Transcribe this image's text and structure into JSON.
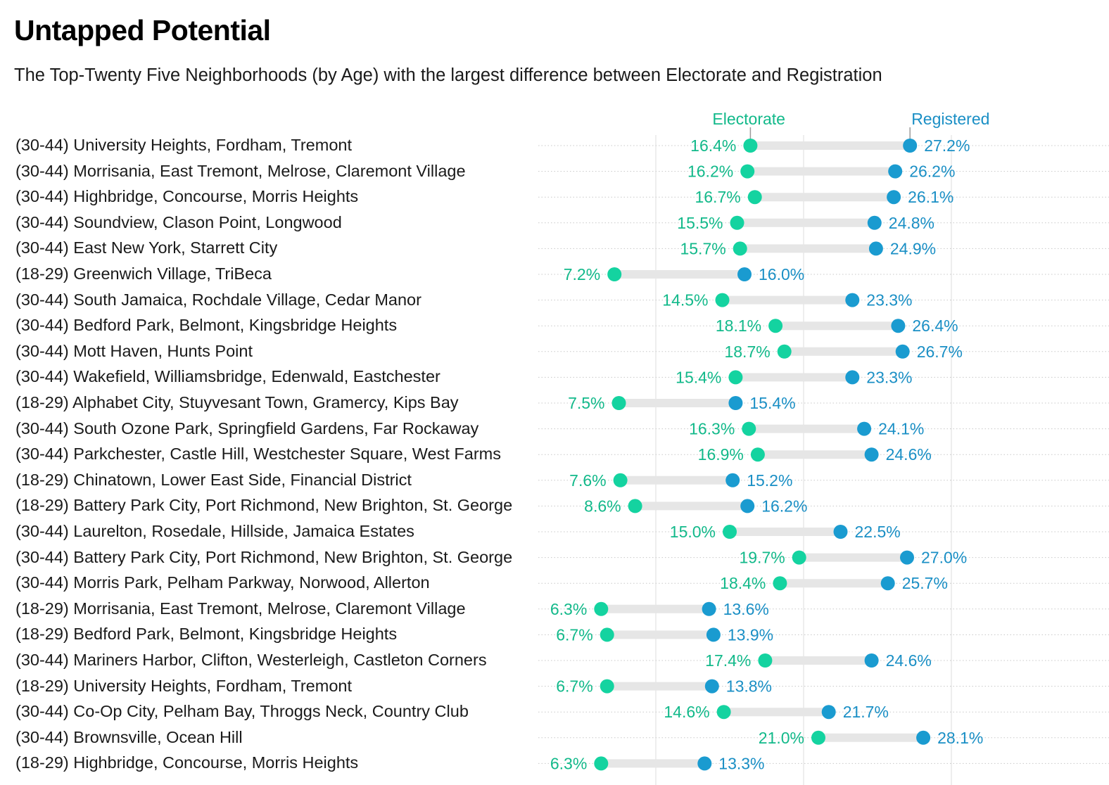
{
  "title": "Untapped Potential",
  "subtitle": "The Top-Twenty Five Neighborhoods (by Age) with the largest difference between Electorate and Registration",
  "colors": {
    "electorate": "#14d3a0",
    "registered": "#1a9bd0",
    "electorate_text": "#12b98a",
    "registered_text": "#1a8fc5",
    "bar": "#e6e6e6"
  },
  "chart_data": {
    "type": "dumbbell",
    "title": "Untapped Potential",
    "subtitle": "The Top-Twenty Five Neighborhoods (by Age) with the largest difference between Electorate and Registration",
    "xlim": [
      0,
      0.35
    ],
    "grid": true,
    "legend_placement": "top, annotating first row",
    "series": [
      {
        "name": "Electorate",
        "key": "electorate"
      },
      {
        "name": "Registered",
        "key": "registered"
      }
    ],
    "rows": [
      {
        "label": "(30-44) University Heights, Fordham, Tremont",
        "electorate": 16.4,
        "registered": 27.2
      },
      {
        "label": "(30-44) Morrisania, East Tremont, Melrose, Claremont Village",
        "electorate": 16.2,
        "registered": 26.2
      },
      {
        "label": "(30-44) Highbridge, Concourse, Morris Heights",
        "electorate": 16.7,
        "registered": 26.1
      },
      {
        "label": "(30-44) Soundview, Clason Point, Longwood",
        "electorate": 15.5,
        "registered": 24.8
      },
      {
        "label": "(30-44) East New York, Starrett City",
        "electorate": 15.7,
        "registered": 24.9
      },
      {
        "label": "(18-29) Greenwich Village, TriBeca",
        "electorate": 7.2,
        "registered": 16.0
      },
      {
        "label": "(30-44) South Jamaica, Rochdale Village, Cedar Manor",
        "electorate": 14.5,
        "registered": 23.3
      },
      {
        "label": "(30-44) Bedford Park, Belmont, Kingsbridge Heights",
        "electorate": 18.1,
        "registered": 26.4
      },
      {
        "label": "(30-44) Mott Haven, Hunts Point",
        "electorate": 18.7,
        "registered": 26.7
      },
      {
        "label": "(30-44) Wakefield, Williamsbridge, Edenwald, Eastchester",
        "electorate": 15.4,
        "registered": 23.3
      },
      {
        "label": "(18-29) Alphabet City, Stuyvesant Town, Gramercy, Kips Bay",
        "electorate": 7.5,
        "registered": 15.4
      },
      {
        "label": "(30-44) South Ozone Park, Springfield Gardens, Far Rockaway",
        "electorate": 16.3,
        "registered": 24.1
      },
      {
        "label": "(30-44) Parkchester, Castle Hill, Westchester Square, West Farms",
        "electorate": 16.9,
        "registered": 24.6
      },
      {
        "label": "(18-29) Chinatown, Lower East Side, Financial District",
        "electorate": 7.6,
        "registered": 15.2
      },
      {
        "label": "(18-29) Battery Park City, Port Richmond, New Brighton, St. George",
        "electorate": 8.6,
        "registered": 16.2
      },
      {
        "label": "(30-44) Laurelton, Rosedale, Hillside, Jamaica Estates",
        "electorate": 15.0,
        "registered": 22.5
      },
      {
        "label": "(30-44) Battery Park City, Port Richmond, New Brighton, St. George",
        "electorate": 19.7,
        "registered": 27.0
      },
      {
        "label": "(30-44) Morris Park, Pelham Parkway, Norwood, Allerton",
        "electorate": 18.4,
        "registered": 25.7
      },
      {
        "label": "(18-29) Morrisania, East Tremont, Melrose, Claremont Village",
        "electorate": 6.3,
        "registered": 13.6
      },
      {
        "label": "(18-29) Bedford Park, Belmont, Kingsbridge Heights",
        "electorate": 6.7,
        "registered": 13.9
      },
      {
        "label": "(30-44) Mariners Harbor, Clifton, Westerleigh, Castleton Corners",
        "electorate": 17.4,
        "registered": 24.6
      },
      {
        "label": "(18-29) University Heights, Fordham, Tremont",
        "electorate": 6.7,
        "registered": 13.8
      },
      {
        "label": "(30-44) Co-Op City, Pelham Bay, Throggs Neck, Country Club",
        "electorate": 14.6,
        "registered": 21.7
      },
      {
        "label": "(30-44) Brownsville, Ocean Hill",
        "electorate": 21.0,
        "registered": 28.1
      },
      {
        "label": "(18-29) Highbridge, Concourse, Morris Heights",
        "electorate": 6.3,
        "registered": 13.3
      }
    ]
  }
}
